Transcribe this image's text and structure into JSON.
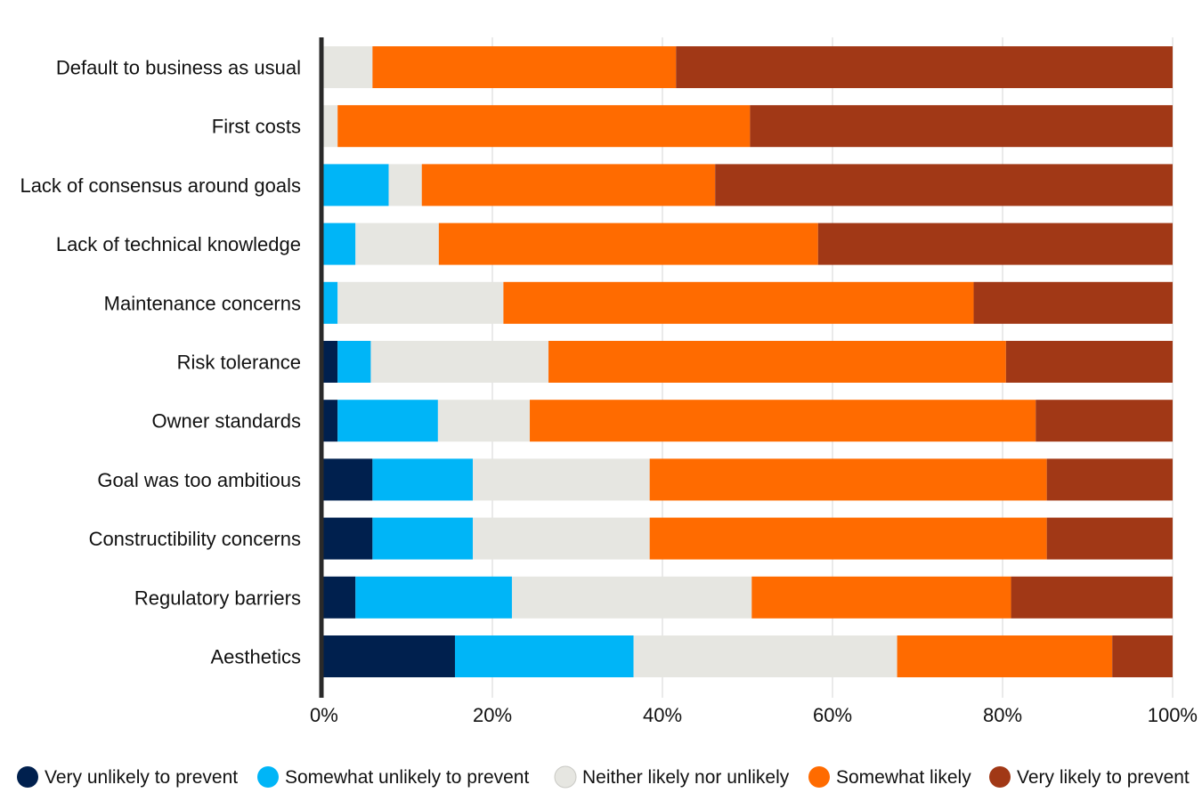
{
  "chart_data": {
    "type": "bar",
    "orientation": "horizontal",
    "stacked": true,
    "categories": [
      "Default to business as usual",
      "First costs",
      "Lack of consensus around goals",
      "Lack of technical knowledge",
      "Maintenance concerns",
      "Risk tolerance",
      "Owner standards",
      "Goal was too ambitious",
      "Constructibility concerns",
      "Regulatory barriers",
      "Aesthetics"
    ],
    "series": [
      {
        "name": "Very unlikely to prevent",
        "color": "#00204e",
        "values": [
          0,
          0,
          0,
          0,
          0,
          1.8,
          1.8,
          5.9,
          5.9,
          3.9,
          15.6
        ]
      },
      {
        "name": "Somewhat unlikely to prevent",
        "color": "#00b5f7",
        "values": [
          0,
          0,
          7.8,
          3.9,
          1.8,
          3.9,
          11.8,
          11.8,
          11.8,
          18.4,
          21.0
        ]
      },
      {
        "name": "Neither likely nor unlikely",
        "color": "#e6e6e1",
        "values": [
          5.9,
          1.8,
          3.9,
          9.8,
          19.5,
          20.9,
          10.8,
          20.8,
          20.8,
          28.2,
          31.0
        ]
      },
      {
        "name": "Somewhat likely",
        "color": "#ff6b00",
        "values": [
          35.7,
          48.5,
          34.5,
          44.6,
          55.3,
          53.8,
          59.5,
          46.7,
          46.7,
          30.5,
          25.3
        ]
      },
      {
        "name": "Very likely to prevent",
        "color": "#a13816",
        "values": [
          58.4,
          49.7,
          53.8,
          41.7,
          23.4,
          19.6,
          16.1,
          14.8,
          14.8,
          19.0,
          7.1
        ]
      }
    ],
    "xlim": [
      0,
      100
    ],
    "x_ticks": [
      "0%",
      "20%",
      "40%",
      "60%",
      "80%",
      "100%"
    ],
    "grid": true,
    "legend_position": "bottom"
  }
}
